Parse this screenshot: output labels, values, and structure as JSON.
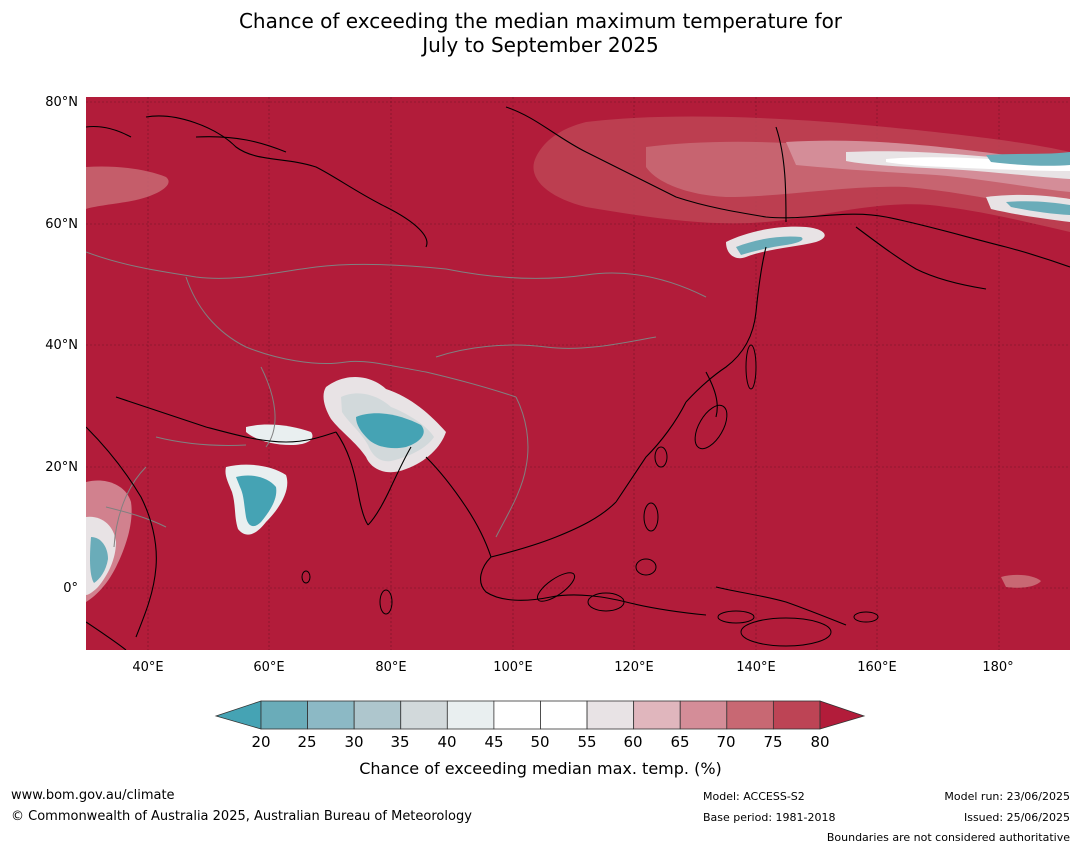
{
  "title": {
    "line1": "Chance of exceeding the median maximum temperature for",
    "line2": "July to September 2025"
  },
  "map": {
    "lat_labels": [
      "80°N",
      "60°N",
      "40°N",
      "20°N",
      "0°"
    ],
    "lon_labels": [
      "40°E",
      "60°E",
      "80°E",
      "100°E",
      "120°E",
      "140°E",
      "160°E",
      "180°"
    ],
    "colors": {
      "background_high": "#b21c3a",
      "coastline": "#000000",
      "borders": "#808080",
      "gridlines": "#5a1020",
      "low_teal": "#45a3b4",
      "neutral": "#ffffff"
    }
  },
  "colorbar": {
    "ticks": [
      "20",
      "25",
      "30",
      "35",
      "40",
      "45",
      "50",
      "55",
      "60",
      "65",
      "70",
      "75",
      "80"
    ],
    "colors": [
      "#6aacb9",
      "#8cb9c5",
      "#aec6cd",
      "#d2d9db",
      "#e9eff0",
      "#ffffff",
      "#ffffff",
      "#e8e3e5",
      "#e0b6bd",
      "#d48d98",
      "#c86873",
      "#bd4455"
    ],
    "under_color": "#45a3b4",
    "over_color": "#b21c3a",
    "label": "Chance of exceeding median max. temp. (%)"
  },
  "footer": {
    "website": "www.bom.gov.au/climate",
    "copyright": "© Commonwealth of Australia 2025, Australian Bureau of Meteorology",
    "model": "Model: ACCESS-S2",
    "base_period": "Base period: 1981-2018",
    "model_run": "Model run: 23/06/2025",
    "issued": "Issued: 25/06/2025",
    "disclaimer": "Boundaries are not considered authoritative"
  }
}
